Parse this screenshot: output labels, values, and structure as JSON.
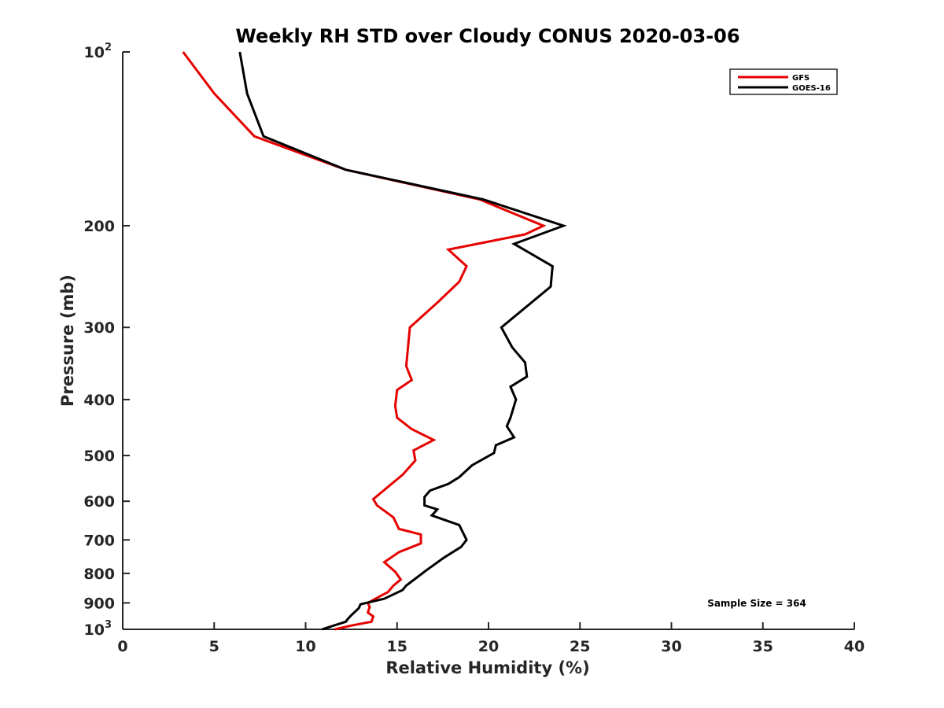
{
  "chart_data": {
    "type": "line",
    "title": "Weekly RH STD over Cloudy CONUS 2020-03-06",
    "xlabel": "Relative Humidity (%)",
    "ylabel": "Pressure (mb)",
    "xlim": [
      0,
      40
    ],
    "ylim": [
      100,
      1000
    ],
    "y_scale": "log",
    "y_reversed": true,
    "grid": false,
    "legend_position": "top-right",
    "x_ticks": [
      "0",
      "5",
      "10",
      "15",
      "20",
      "25",
      "30",
      "35",
      "40"
    ],
    "y_ticks": [
      {
        "value": 100,
        "base": "10",
        "exp": "2"
      },
      {
        "value": 200,
        "label": "200"
      },
      {
        "value": 300,
        "label": "300"
      },
      {
        "value": 400,
        "label": "400"
      },
      {
        "value": 500,
        "label": "500"
      },
      {
        "value": 600,
        "label": "600"
      },
      {
        "value": 700,
        "label": "700"
      },
      {
        "value": 800,
        "label": "800"
      },
      {
        "value": 900,
        "label": "900"
      },
      {
        "value": 1000,
        "base": "10",
        "exp": "3"
      }
    ],
    "annotation": "Sample Size = 364",
    "series": [
      {
        "name": "GFS",
        "color": "#e60000",
        "points": [
          [
            3.3,
            100
          ],
          [
            5.0,
            118
          ],
          [
            7.2,
            140
          ],
          [
            12.2,
            160
          ],
          [
            19.5,
            180
          ],
          [
            23.0,
            200
          ],
          [
            22.0,
            207
          ],
          [
            17.8,
            220
          ],
          [
            18.8,
            235
          ],
          [
            18.4,
            250
          ],
          [
            17.3,
            270
          ],
          [
            15.7,
            300
          ],
          [
            15.5,
            350
          ],
          [
            15.8,
            370
          ],
          [
            15.0,
            385
          ],
          [
            14.9,
            410
          ],
          [
            15.0,
            430
          ],
          [
            15.8,
            450
          ],
          [
            17.0,
            470
          ],
          [
            15.9,
            490
          ],
          [
            16.0,
            510
          ],
          [
            15.3,
            540
          ],
          [
            13.7,
            595
          ],
          [
            13.9,
            610
          ],
          [
            14.8,
            640
          ],
          [
            15.1,
            670
          ],
          [
            16.3,
            685
          ],
          [
            16.3,
            710
          ],
          [
            15.1,
            735
          ],
          [
            14.3,
            765
          ],
          [
            14.9,
            795
          ],
          [
            15.2,
            820
          ],
          [
            14.8,
            840
          ],
          [
            14.5,
            862
          ],
          [
            14.2,
            872
          ],
          [
            13.4,
            900
          ],
          [
            13.5,
            915
          ],
          [
            13.4,
            935
          ],
          [
            13.7,
            950
          ],
          [
            13.6,
            970
          ],
          [
            12.5,
            985
          ],
          [
            11.6,
            1000
          ]
        ]
      },
      {
        "name": "GOES-16",
        "color": "#000000",
        "points": [
          [
            6.4,
            100
          ],
          [
            6.8,
            118
          ],
          [
            7.7,
            140
          ],
          [
            12.2,
            160
          ],
          [
            19.7,
            180
          ],
          [
            24.1,
            200
          ],
          [
            21.4,
            215
          ],
          [
            23.5,
            235
          ],
          [
            23.4,
            255
          ],
          [
            20.7,
            300
          ],
          [
            21.3,
            325
          ],
          [
            22.0,
            345
          ],
          [
            22.1,
            365
          ],
          [
            21.2,
            380
          ],
          [
            21.5,
            400
          ],
          [
            21.2,
            430
          ],
          [
            21.0,
            445
          ],
          [
            21.4,
            465
          ],
          [
            20.4,
            480
          ],
          [
            20.3,
            495
          ],
          [
            19.1,
            520
          ],
          [
            18.4,
            545
          ],
          [
            17.8,
            560
          ],
          [
            16.8,
            575
          ],
          [
            16.5,
            590
          ],
          [
            16.5,
            610
          ],
          [
            17.2,
            620
          ],
          [
            16.9,
            635
          ],
          [
            18.4,
            660
          ],
          [
            18.8,
            700
          ],
          [
            18.5,
            720
          ],
          [
            17.6,
            750
          ],
          [
            16.6,
            790
          ],
          [
            15.5,
            840
          ],
          [
            15.3,
            855
          ],
          [
            14.3,
            885
          ],
          [
            13.0,
            905
          ],
          [
            12.9,
            920
          ],
          [
            12.5,
            945
          ],
          [
            12.3,
            960
          ],
          [
            12.2,
            970
          ],
          [
            10.9,
            1000
          ]
        ]
      }
    ]
  }
}
